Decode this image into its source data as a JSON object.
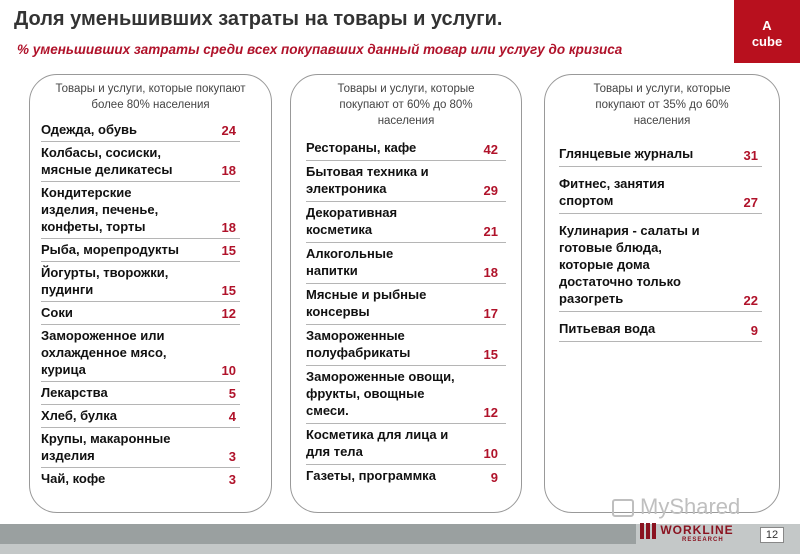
{
  "header": {
    "title": "Доля уменьшивших затраты на товары и услуги.",
    "subtitle": "% уменьшивших затраты среди всех покупавших данный товар или услугу до кризиса"
  },
  "brand_badge": {
    "line1": "A",
    "line2": "cube"
  },
  "panels": [
    {
      "heading": "Товары и услуги, которые покупают более 80% населения",
      "items": [
        {
          "label": "Одежда, обувь",
          "value": "24"
        },
        {
          "label": "Колбасы, сосиски, мясные деликатесы",
          "value": "18"
        },
        {
          "label": "Кондитерские изделия, печенье, конфеты, торты",
          "value": "18"
        },
        {
          "label": "Рыба, морепродукты",
          "value": "15"
        },
        {
          "label": "Йогурты, творожки, пудинги",
          "value": "15"
        },
        {
          "label": "Соки",
          "value": "12"
        },
        {
          "label": "Замороженное или охлажденное мясо, курица",
          "value": "10"
        },
        {
          "label": "Лекарства",
          "value": "5"
        },
        {
          "label": "Хлеб, булка",
          "value": "4"
        },
        {
          "label": "Крупы, макаронные изделия",
          "value": "3"
        },
        {
          "label": "Чай, кофе",
          "value": "3"
        }
      ]
    },
    {
      "heading": "Товары и услуги, которые покупают от 60% до 80% населения",
      "items": [
        {
          "label": "Рестораны, кафе",
          "value": "42"
        },
        {
          "label": "Бытовая техника и электроника",
          "value": "29"
        },
        {
          "label": "Декоративная косметика",
          "value": "21"
        },
        {
          "label": "Алкогольные напитки",
          "value": "18"
        },
        {
          "label": "Мясные и рыбные консервы",
          "value": "17"
        },
        {
          "label": "Замороженные полуфабрикаты",
          "value": "15"
        },
        {
          "label": "Замороженные овощи, фрукты, овощные смеси.",
          "value": "12"
        },
        {
          "label": "Косметика для лица и для тела",
          "value": "10"
        },
        {
          "label": "Газеты, программка",
          "value": "9"
        }
      ]
    },
    {
      "heading": "Товары и услуги, которые покупают от 35% до 60% населения",
      "items": [
        {
          "label": "Глянцевые журналы",
          "value": "31"
        },
        {
          "label": "Фитнес, занятия спортом",
          "value": "27"
        },
        {
          "label": "Кулинария - салаты и готовые блюда, которые дома достаточно только разогреть",
          "value": "22"
        },
        {
          "label": "Питьевая вода",
          "value": "9"
        }
      ]
    }
  ],
  "footer": {
    "logo_text": "WORKLINE",
    "logo_sub": "RESEARCH",
    "page_number": "12",
    "watermark": "MyShared"
  }
}
